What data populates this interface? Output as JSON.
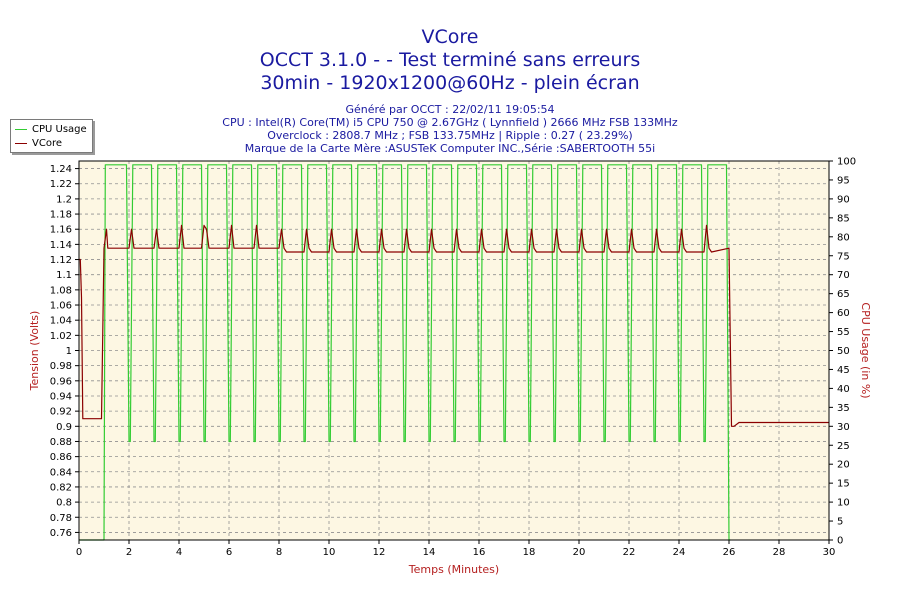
{
  "header": {
    "title": "VCore",
    "subtitle1": "OCCT 3.1.0 -  - Test terminé sans erreurs",
    "subtitle2": "30min - 1920x1200@60Hz - plein écran",
    "info": [
      "Généré par OCCT : 22/02/11 19:05:54",
      "CPU : Intel(R) Core(TM) i5 CPU 750 @ 2.67GHz ( Lynnfield ) 2666 MHz FSB 133MHz",
      "Overclock : 2808.7 MHz ; FSB 133.75MHz | Ripple : 0.27 ( 23.29%)",
      "Marque de la Carte Mère :ASUSTeK Computer INC.,Série :SABERTOOTH 55i"
    ]
  },
  "colors": {
    "plot_background": "#fdf7e3",
    "vcore": "#8b0000",
    "cpu_usage": "#33cc33",
    "grid": "#909090",
    "axis_label": "#b52020"
  },
  "chart_data": {
    "type": "line",
    "xlabel": "Temps (Minutes)",
    "ylabel": "Tension (Volts)",
    "y2label": "CPU Usage (in %)",
    "xlim": [
      0,
      30
    ],
    "ylim": [
      0.75,
      1.25
    ],
    "y2lim": [
      0,
      100
    ],
    "x_ticks": [
      0,
      2,
      4,
      6,
      8,
      10,
      12,
      14,
      16,
      18,
      20,
      22,
      24,
      26,
      28,
      30
    ],
    "y_ticks": [
      0.76,
      0.78,
      0.8,
      0.82,
      0.84,
      0.86,
      0.88,
      0.9,
      0.92,
      0.94,
      0.96,
      0.98,
      1,
      1.02,
      1.04,
      1.06,
      1.08,
      1.1,
      1.12,
      1.14,
      1.16,
      1.18,
      1.2,
      1.22,
      1.24
    ],
    "y2_ticks": [
      0,
      5,
      10,
      15,
      20,
      25,
      30,
      35,
      40,
      45,
      50,
      55,
      60,
      65,
      70,
      75,
      80,
      85,
      90,
      95,
      100
    ],
    "grid": true,
    "legend_position": "top-left",
    "series": [
      {
        "name": "CPU Usage",
        "axis": "right",
        "x": [
          0,
          0.9,
          1.0,
          1.05,
          1.2,
          1.9,
          2.0,
          2.05,
          2.15,
          2.9,
          3.0,
          3.05,
          3.15,
          3.9,
          4.0,
          4.05,
          4.15,
          4.9,
          5.0,
          5.05,
          5.15,
          5.9,
          6.0,
          6.05,
          6.15,
          6.9,
          7.0,
          7.05,
          7.15,
          7.9,
          8.0,
          8.05,
          8.15,
          8.9,
          9.0,
          9.05,
          9.15,
          9.9,
          10.0,
          10.05,
          10.15,
          10.9,
          11.0,
          11.05,
          11.15,
          11.9,
          12.0,
          12.05,
          12.15,
          12.9,
          13.0,
          13.05,
          13.15,
          13.9,
          14.0,
          14.05,
          14.15,
          14.9,
          15.0,
          15.05,
          15.15,
          15.9,
          16.0,
          16.05,
          16.15,
          16.9,
          17.0,
          17.05,
          17.15,
          17.9,
          18.0,
          18.05,
          18.15,
          18.9,
          19.0,
          19.05,
          19.15,
          19.9,
          20.0,
          20.05,
          20.15,
          20.9,
          21.0,
          21.05,
          21.15,
          21.9,
          22.0,
          22.05,
          22.15,
          22.9,
          23.0,
          23.05,
          23.15,
          23.9,
          24.0,
          24.05,
          24.15,
          24.9,
          25.0,
          25.05,
          25.15,
          25.9,
          26.0,
          26.05
        ],
        "values": [
          0,
          0,
          0,
          99,
          99,
          99,
          26,
          26,
          99,
          99,
          26,
          26,
          99,
          99,
          26,
          26,
          99,
          99,
          26,
          26,
          99,
          99,
          26,
          26,
          99,
          99,
          26,
          26,
          99,
          99,
          26,
          26,
          99,
          99,
          26,
          26,
          99,
          99,
          26,
          26,
          99,
          99,
          26,
          26,
          99,
          99,
          26,
          26,
          99,
          99,
          26,
          26,
          99,
          99,
          26,
          26,
          99,
          99,
          26,
          26,
          99,
          99,
          26,
          26,
          99,
          99,
          26,
          26,
          99,
          99,
          26,
          26,
          99,
          99,
          26,
          26,
          99,
          99,
          26,
          26,
          99,
          99,
          26,
          26,
          99,
          99,
          26,
          26,
          99,
          99,
          26,
          26,
          99,
          99,
          26,
          26,
          99,
          99,
          26,
          26,
          99,
          99,
          0,
          0
        ]
      },
      {
        "name": "VCore",
        "axis": "left",
        "x": [
          0,
          0.05,
          0.1,
          0.15,
          0.2,
          0.9,
          1.0,
          1.1,
          1.15,
          2.0,
          2.1,
          2.2,
          2.3,
          3.0,
          3.1,
          3.2,
          3.3,
          4.0,
          4.1,
          4.2,
          4.3,
          4.9,
          5.0,
          5.1,
          5.2,
          6.0,
          6.1,
          6.2,
          6.3,
          7.0,
          7.1,
          7.2,
          7.3,
          8.0,
          8.1,
          8.2,
          8.3,
          9.0,
          9.1,
          9.2,
          9.3,
          10.0,
          10.1,
          10.2,
          10.3,
          11.0,
          11.1,
          11.2,
          11.3,
          12.0,
          12.1,
          12.2,
          12.3,
          13.0,
          13.1,
          13.2,
          13.3,
          14.0,
          14.1,
          14.2,
          14.3,
          15.0,
          15.1,
          15.2,
          15.3,
          16.0,
          16.1,
          16.2,
          16.3,
          17.0,
          17.1,
          17.2,
          17.3,
          18.0,
          18.1,
          18.2,
          18.3,
          19.0,
          19.1,
          19.2,
          19.3,
          20.0,
          20.1,
          20.2,
          20.3,
          21.0,
          21.1,
          21.2,
          21.3,
          22.0,
          22.1,
          22.2,
          22.3,
          23.0,
          23.1,
          23.2,
          23.3,
          24.0,
          24.1,
          24.2,
          24.3,
          25.0,
          25.1,
          25.2,
          25.3,
          26.0,
          26.1,
          26.2,
          26.4,
          30.0
        ],
        "values": [
          1.12,
          1.12,
          1.07,
          0.91,
          0.91,
          0.91,
          1.135,
          1.16,
          1.135,
          1.135,
          1.16,
          1.135,
          1.135,
          1.135,
          1.16,
          1.135,
          1.135,
          1.135,
          1.165,
          1.135,
          1.135,
          1.135,
          1.165,
          1.16,
          1.135,
          1.135,
          1.165,
          1.135,
          1.135,
          1.135,
          1.165,
          1.135,
          1.135,
          1.135,
          1.16,
          1.135,
          1.13,
          1.13,
          1.16,
          1.135,
          1.13,
          1.13,
          1.16,
          1.135,
          1.13,
          1.13,
          1.16,
          1.135,
          1.13,
          1.13,
          1.16,
          1.135,
          1.13,
          1.13,
          1.16,
          1.135,
          1.13,
          1.13,
          1.16,
          1.135,
          1.13,
          1.13,
          1.16,
          1.135,
          1.13,
          1.13,
          1.16,
          1.135,
          1.13,
          1.13,
          1.16,
          1.135,
          1.13,
          1.13,
          1.16,
          1.135,
          1.13,
          1.13,
          1.16,
          1.135,
          1.13,
          1.13,
          1.16,
          1.135,
          1.13,
          1.13,
          1.16,
          1.135,
          1.13,
          1.13,
          1.16,
          1.135,
          1.13,
          1.13,
          1.16,
          1.135,
          1.13,
          1.13,
          1.16,
          1.135,
          1.13,
          1.13,
          1.165,
          1.135,
          1.13,
          1.135,
          0.9,
          0.9,
          0.905,
          0.905
        ]
      }
    ]
  }
}
